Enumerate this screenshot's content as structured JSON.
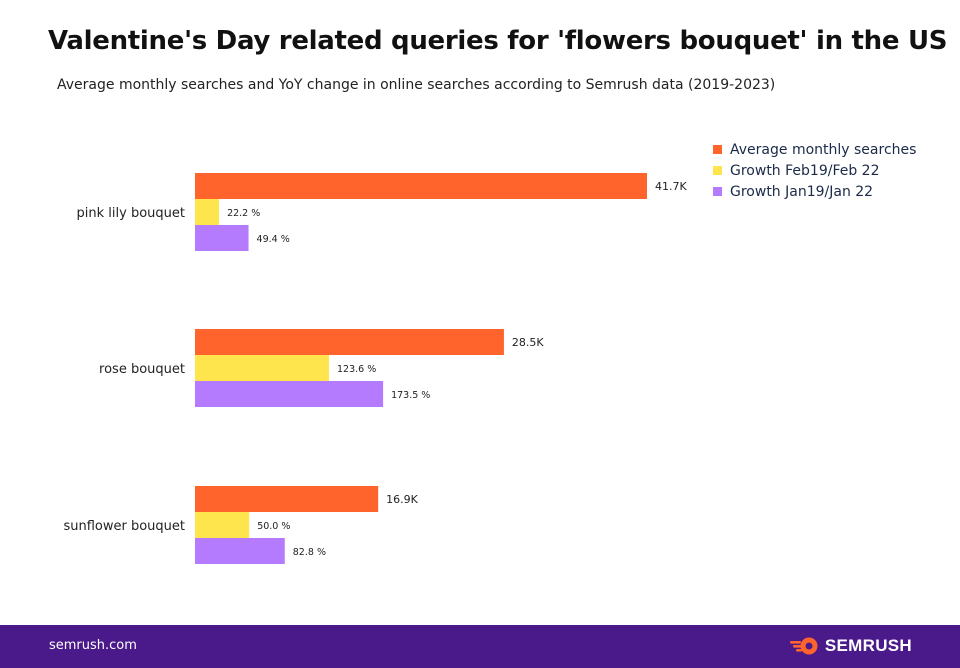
{
  "header": {
    "title": "Valentine's Day related queries for 'flowers bouquet' in the US",
    "subtitle": "Average monthly searches and YoY change in online searches according to Semrush data (2019-2023)"
  },
  "chart_data": {
    "type": "bar",
    "orientation": "horizontal",
    "categories": [
      "pink lily bouquet",
      "rose bouquet",
      "sunflower bouquet"
    ],
    "series": [
      {
        "name": "Average monthly searches",
        "color": "#ff642d",
        "values": [
          41700,
          28500,
          16900
        ],
        "labels": [
          "41.7K",
          "28.5K",
          "16.9K"
        ]
      },
      {
        "name": "Growth Feb19/Feb 22",
        "color": "#ffe54d",
        "values": [
          22.2,
          123.6,
          50.0
        ],
        "labels": [
          "22.2 %",
          "123.6 %",
          "50.0 %"
        ]
      },
      {
        "name": "Growth Jan19/Jan 22",
        "color": "#b57bff",
        "values": [
          49.4,
          173.5,
          82.8
        ],
        "labels": [
          "49.4 %",
          "173.5 %",
          "82.8 %"
        ]
      }
    ],
    "legend_position": "top-right",
    "grid": false
  },
  "footer": {
    "site": "semrush.com",
    "brand": "SEMRUSH",
    "brand_icon": "semrush-fireball-icon"
  }
}
